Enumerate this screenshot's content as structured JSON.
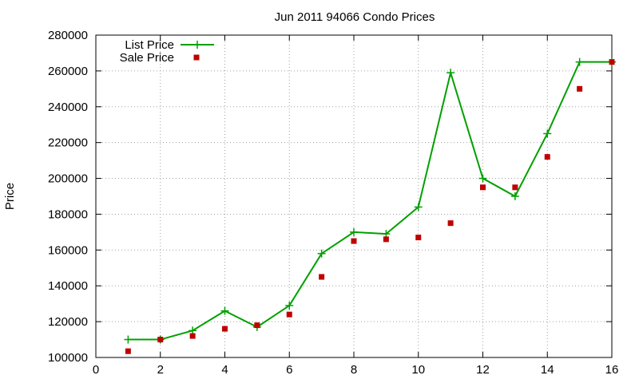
{
  "chart_data": {
    "type": "line",
    "title": "Jun 2011 94066 Condo Prices",
    "xlabel": "",
    "ylabel": "Price",
    "xlim": [
      0,
      16
    ],
    "ylim": [
      100000,
      280000
    ],
    "x_ticks": [
      0,
      2,
      4,
      6,
      8,
      10,
      12,
      14,
      16
    ],
    "y_ticks": [
      100000,
      120000,
      140000,
      160000,
      180000,
      200000,
      220000,
      240000,
      260000,
      280000
    ],
    "grid": true,
    "legend_position": "top-left",
    "series": [
      {
        "name": "List Price",
        "style": "line-plus",
        "color": "#00a000",
        "x": [
          1,
          2,
          3,
          4,
          5,
          6,
          7,
          8,
          9,
          10,
          11,
          12,
          13,
          14,
          15,
          16
        ],
        "y": [
          110000,
          110000,
          115000,
          126000,
          117000,
          129000,
          158000,
          170000,
          169000,
          184000,
          259000,
          200000,
          190000,
          225000,
          265000,
          265000
        ]
      },
      {
        "name": "Sale Price",
        "style": "square-points",
        "color": "#c00000",
        "x": [
          1,
          2,
          3,
          4,
          5,
          6,
          7,
          8,
          9,
          10,
          11,
          12,
          13,
          14,
          15,
          16
        ],
        "y": [
          103500,
          110000,
          112000,
          116000,
          118000,
          124000,
          145000,
          165000,
          166000,
          167000,
          175000,
          195000,
          195000,
          212000,
          250000,
          265000
        ]
      }
    ]
  }
}
